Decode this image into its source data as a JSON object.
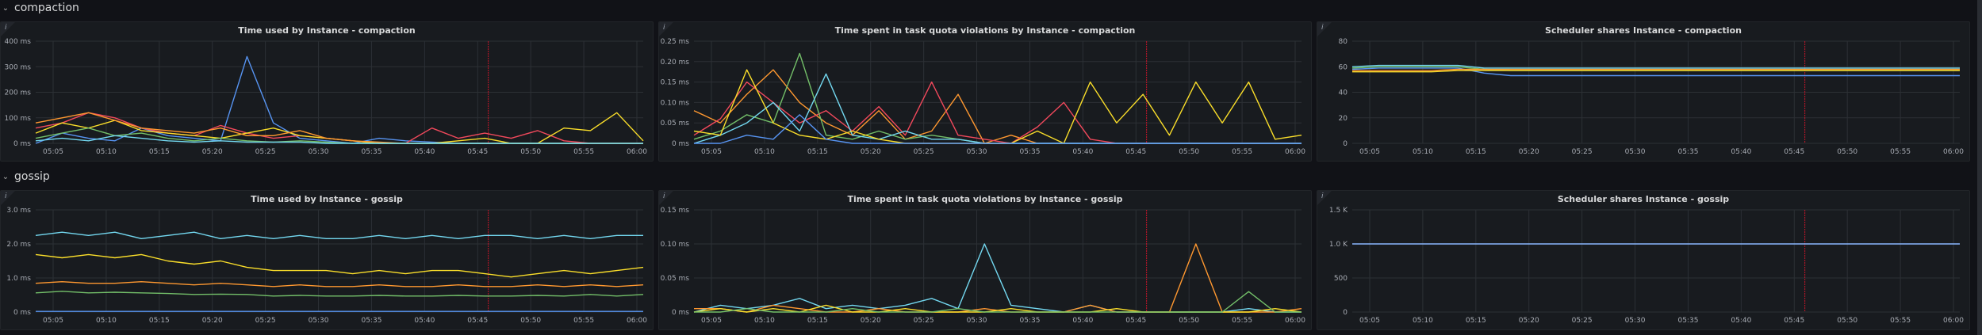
{
  "rows": [
    {
      "title": "compaction",
      "icon": "chevron-down-icon"
    },
    {
      "title": "gossip",
      "icon": "chevron-down-icon"
    }
  ],
  "colors": {
    "green": "#73bf69",
    "yellow": "#f2cc0c",
    "blue": "#5794f2",
    "orange": "#ff9830",
    "red": "#f2495c",
    "cyan": "#8ab8ff",
    "lightblue": "#73d8f0",
    "gold": "#fade2a",
    "annotation": "#c4162a"
  },
  "panels": [
    {
      "id": "p1",
      "row": 0,
      "title": "Time used by Instance - compaction",
      "chart_data": {
        "type": "line",
        "x_ticks": [
          "05:05",
          "05:10",
          "05:15",
          "05:20",
          "05:25",
          "05:30",
          "05:35",
          "05:40",
          "05:45",
          "05:50",
          "05:55",
          "06:00"
        ],
        "y_ticks": [
          "0 ms",
          "100 ms",
          "200 ms",
          "300 ms",
          "400 ms"
        ],
        "ylim": [
          0,
          400
        ],
        "series": [
          {
            "color": "#5794f2",
            "values": [
              0,
              40,
              20,
              10,
              60,
              30,
              20,
              10,
              340,
              80,
              20,
              10,
              0,
              20,
              10,
              5,
              0,
              0,
              0,
              0,
              0,
              0,
              0,
              0
            ]
          },
          {
            "color": "#f2495c",
            "values": [
              60,
              80,
              120,
              100,
              60,
              40,
              30,
              70,
              40,
              20,
              30,
              20,
              10,
              0,
              0,
              60,
              20,
              40,
              20,
              50,
              10,
              0,
              0,
              0
            ]
          },
          {
            "color": "#fade2a",
            "values": [
              40,
              80,
              60,
              90,
              50,
              40,
              30,
              20,
              40,
              60,
              30,
              20,
              10,
              0,
              0,
              0,
              10,
              20,
              0,
              0,
              60,
              50,
              120,
              10
            ]
          },
          {
            "color": "#ff9830",
            "values": [
              80,
              100,
              120,
              90,
              60,
              50,
              40,
              60,
              30,
              30,
              50,
              20,
              10,
              5,
              0,
              0,
              0,
              0,
              0,
              0,
              0,
              0,
              0,
              0
            ]
          },
          {
            "color": "#73bf69",
            "values": [
              20,
              40,
              60,
              30,
              40,
              20,
              10,
              20,
              10,
              5,
              10,
              5,
              0,
              0,
              0,
              0,
              0,
              0,
              0,
              0,
              0,
              0,
              0,
              0
            ]
          },
          {
            "color": "#73d8f0",
            "values": [
              10,
              20,
              10,
              30,
              20,
              10,
              5,
              10,
              5,
              5,
              5,
              0,
              0,
              0,
              0,
              0,
              0,
              0,
              0,
              0,
              0,
              0,
              0,
              0
            ]
          }
        ]
      }
    },
    {
      "id": "p2",
      "row": 0,
      "title": "Time spent in task quota violations by Instance - compaction",
      "chart_data": {
        "type": "line",
        "x_ticks": [
          "05:05",
          "05:10",
          "05:15",
          "05:20",
          "05:25",
          "05:30",
          "05:35",
          "05:40",
          "05:45",
          "05:50",
          "05:55",
          "06:00"
        ],
        "y_ticks": [
          "0 ms",
          "0.05 ms",
          "0.10 ms",
          "0.15 ms",
          "0.20 ms",
          "0.25 ms"
        ],
        "ylim": [
          0,
          0.25
        ],
        "series": [
          {
            "color": "#ff9830",
            "values": [
              0.08,
              0.05,
              0.12,
              0.18,
              0.1,
              0.05,
              0.02,
              0.08,
              0.01,
              0.03,
              0.12,
              0,
              0.02,
              0,
              0,
              0,
              0,
              0,
              0,
              0,
              0,
              0,
              0,
              0
            ]
          },
          {
            "color": "#f2495c",
            "values": [
              0.02,
              0.06,
              0.15,
              0.1,
              0.05,
              0.08,
              0.03,
              0.09,
              0.02,
              0.15,
              0.02,
              0.01,
              0,
              0.04,
              0.1,
              0.01,
              0,
              0,
              0,
              0,
              0,
              0,
              0,
              0
            ]
          },
          {
            "color": "#73bf69",
            "values": [
              0.01,
              0.03,
              0.07,
              0.05,
              0.22,
              0.02,
              0.01,
              0.03,
              0.01,
              0.02,
              0.01,
              0,
              0,
              0,
              0,
              0,
              0,
              0,
              0,
              0,
              0,
              0,
              0,
              0
            ]
          },
          {
            "color": "#73d8f0",
            "values": [
              0,
              0.02,
              0.05,
              0.1,
              0.03,
              0.17,
              0.02,
              0.01,
              0.03,
              0.01,
              0.01,
              0,
              0,
              0,
              0,
              0,
              0,
              0,
              0,
              0,
              0,
              0,
              0,
              0
            ]
          },
          {
            "color": "#fade2a",
            "values": [
              0.03,
              0.02,
              0.18,
              0.05,
              0.02,
              0.01,
              0.03,
              0.01,
              0,
              0,
              0,
              0,
              0,
              0.03,
              0,
              0.15,
              0.05,
              0.12,
              0.02,
              0.15,
              0.05,
              0.15,
              0.01,
              0.02
            ]
          },
          {
            "color": "#5794f2",
            "values": [
              0,
              0,
              0.02,
              0.01,
              0.07,
              0.01,
              0,
              0,
              0,
              0,
              0,
              0,
              0,
              0,
              0,
              0,
              0,
              0,
              0,
              0,
              0,
              0,
              0,
              0
            ]
          }
        ]
      }
    },
    {
      "id": "p3",
      "row": 0,
      "title": "Scheduler shares Instance - compaction",
      "chart_data": {
        "type": "line",
        "x_ticks": [
          "05:05",
          "05:10",
          "05:15",
          "05:20",
          "05:25",
          "05:30",
          "05:35",
          "05:40",
          "05:45",
          "05:50",
          "05:55",
          "06:00"
        ],
        "y_ticks": [
          "0",
          "20",
          "40",
          "60",
          "80"
        ],
        "ylim": [
          0,
          80
        ],
        "series": [
          {
            "color": "#5794f2",
            "values": [
              58,
              59,
              59,
              59,
              59,
              55,
              53,
              53,
              53,
              53,
              53,
              53,
              53,
              53,
              53,
              53,
              53,
              53,
              53,
              53,
              53,
              53,
              53,
              53
            ]
          },
          {
            "color": "#73bf69",
            "values": [
              59,
              60,
              60,
              60,
              60,
              58,
              57,
              57,
              57,
              57,
              57,
              57,
              57,
              57,
              57,
              57,
              57,
              57,
              57,
              57,
              57,
              57,
              57,
              57
            ]
          },
          {
            "color": "#ff9830",
            "values": [
              57,
              57,
              57,
              57,
              58,
              58,
              58,
              58,
              58,
              58,
              58,
              58,
              58,
              58,
              58,
              58,
              58,
              58,
              58,
              58,
              58,
              58,
              58,
              58
            ]
          },
          {
            "color": "#fade2a",
            "values": [
              56,
              56,
              56,
              56,
              57,
              57,
              57,
              57,
              57,
              57,
              57,
              57,
              57,
              57,
              57,
              57,
              57,
              57,
              57,
              57,
              57,
              57,
              57,
              57
            ]
          },
          {
            "color": "#73d8f0",
            "values": [
              60,
              61,
              61,
              61,
              61,
              59,
              59,
              59,
              59,
              59,
              59,
              59,
              59,
              59,
              59,
              59,
              59,
              59,
              59,
              59,
              59,
              59,
              59,
              59
            ]
          }
        ]
      }
    },
    {
      "id": "p4",
      "row": 1,
      "title": "Time used by Instance - gossip",
      "chart_data": {
        "type": "line",
        "x_ticks": [
          "05:05",
          "05:10",
          "05:15",
          "05:20",
          "05:25",
          "05:30",
          "05:35",
          "05:40",
          "05:45",
          "05:50",
          "05:55",
          "06:00"
        ],
        "y_ticks": [
          "0 ms",
          "1.0 ms",
          "2.0 ms",
          "3.0 ms"
        ],
        "ylim": [
          0,
          3.2
        ],
        "series": [
          {
            "color": "#73d8f0",
            "values": [
              2.4,
              2.5,
              2.4,
              2.5,
              2.3,
              2.4,
              2.5,
              2.3,
              2.4,
              2.3,
              2.4,
              2.3,
              2.3,
              2.4,
              2.3,
              2.4,
              2.3,
              2.4,
              2.4,
              2.3,
              2.4,
              2.3,
              2.4,
              2.4
            ]
          },
          {
            "color": "#fade2a",
            "values": [
              1.8,
              1.7,
              1.8,
              1.7,
              1.8,
              1.6,
              1.5,
              1.6,
              1.4,
              1.3,
              1.3,
              1.3,
              1.2,
              1.3,
              1.2,
              1.3,
              1.3,
              1.2,
              1.1,
              1.2,
              1.3,
              1.2,
              1.3,
              1.4
            ]
          },
          {
            "color": "#ff9830",
            "values": [
              0.9,
              0.95,
              0.9,
              0.9,
              0.95,
              0.9,
              0.85,
              0.9,
              0.85,
              0.8,
              0.85,
              0.8,
              0.8,
              0.85,
              0.8,
              0.8,
              0.85,
              0.8,
              0.8,
              0.85,
              0.8,
              0.85,
              0.8,
              0.85
            ]
          },
          {
            "color": "#73bf69",
            "values": [
              0.6,
              0.65,
              0.6,
              0.62,
              0.6,
              0.58,
              0.55,
              0.56,
              0.55,
              0.5,
              0.52,
              0.5,
              0.5,
              0.52,
              0.5,
              0.5,
              0.52,
              0.5,
              0.5,
              0.52,
              0.5,
              0.55,
              0.5,
              0.55
            ]
          },
          {
            "color": "#5794f2",
            "values": [
              0.02,
              0.02,
              0.02,
              0.02,
              0.02,
              0.02,
              0.02,
              0.02,
              0.02,
              0.02,
              0.02,
              0.02,
              0.02,
              0.02,
              0.02,
              0.02,
              0.02,
              0.02,
              0.02,
              0.02,
              0.02,
              0.02,
              0.02,
              0.02
            ]
          }
        ]
      }
    },
    {
      "id": "p5",
      "row": 1,
      "title": "Time spent in task quota violations by Instance - gossip",
      "chart_data": {
        "type": "line",
        "x_ticks": [
          "05:05",
          "05:10",
          "05:15",
          "05:20",
          "05:25",
          "05:30",
          "05:35",
          "05:40",
          "05:45",
          "05:50",
          "05:55",
          "06:00"
        ],
        "y_ticks": [
          "0 ms",
          "0.05 ms",
          "0.10 ms",
          "0.15 ms"
        ],
        "ylim": [
          0,
          0.15
        ],
        "series": [
          {
            "color": "#73d8f0",
            "values": [
              0,
              0.01,
              0.005,
              0.01,
              0.02,
              0.005,
              0.01,
              0.005,
              0.01,
              0.02,
              0.005,
              0.1,
              0.01,
              0.005,
              0,
              0.01,
              0,
              0,
              0,
              0,
              0,
              0.005,
              0,
              0
            ]
          },
          {
            "color": "#ff9830",
            "values": [
              0.005,
              0.005,
              0,
              0.01,
              0.005,
              0,
              0,
              0.005,
              0,
              0,
              0,
              0.005,
              0,
              0,
              0,
              0.01,
              0,
              0,
              0,
              0.1,
              0,
              0,
              0,
              0.005
            ]
          },
          {
            "color": "#fade2a",
            "values": [
              0,
              0.005,
              0,
              0.005,
              0,
              0.01,
              0,
              0,
              0.005,
              0,
              0,
              0,
              0.005,
              0,
              0,
              0,
              0.005,
              0,
              0,
              0,
              0,
              0,
              0.005,
              0
            ]
          },
          {
            "color": "#73bf69",
            "values": [
              0,
              0,
              0.005,
              0,
              0,
              0,
              0.005,
              0,
              0,
              0,
              0.005,
              0,
              0,
              0,
              0,
              0,
              0,
              0,
              0,
              0,
              0,
              0.03,
              0,
              0
            ]
          }
        ]
      }
    },
    {
      "id": "p6",
      "row": 1,
      "title": "Scheduler shares Instance - gossip",
      "chart_data": {
        "type": "line",
        "x_ticks": [
          "05:05",
          "05:10",
          "05:15",
          "05:20",
          "05:25",
          "05:30",
          "05:35",
          "05:40",
          "05:45",
          "05:50",
          "05:55",
          "06:00"
        ],
        "y_ticks": [
          "0",
          "500",
          "1.0 K",
          "1.5 K"
        ],
        "ylim": [
          0,
          1500
        ],
        "series": [
          {
            "color": "#8ab8ff",
            "values": [
              1000,
              1000,
              1000,
              1000,
              1000,
              1000,
              1000,
              1000,
              1000,
              1000,
              1000,
              1000,
              1000,
              1000,
              1000,
              1000,
              1000,
              1000,
              1000,
              1000,
              1000,
              1000,
              1000,
              1000
            ]
          }
        ]
      }
    }
  ]
}
